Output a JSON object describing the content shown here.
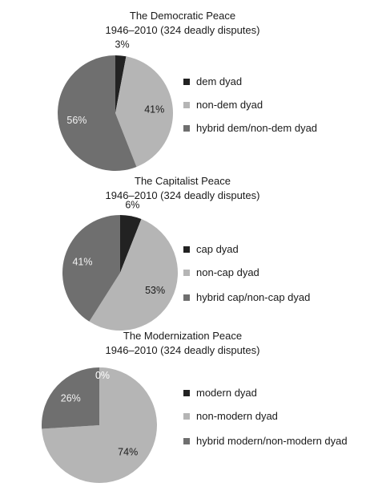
{
  "chart_data": [
    {
      "type": "pie",
      "title": "The Democratic Peace",
      "subtitle": "1946–2010 (324 deadly disputes)",
      "labels": [
        "dem dyad",
        "non-dem dyad",
        "hybrid dem/non-dem dyad"
      ],
      "values": [
        3,
        41,
        56
      ],
      "value_labels": [
        "3%",
        "41%",
        "56%"
      ],
      "colors": [
        "#222222",
        "#b5b5b5",
        "#6f6f6f"
      ],
      "legend_position": "right"
    },
    {
      "type": "pie",
      "title": "The Capitalist Peace",
      "subtitle": "1946–2010 (324 deadly disputes)",
      "labels": [
        "cap dyad",
        "non-cap dyad",
        "hybrid cap/non-cap dyad"
      ],
      "values": [
        6,
        53,
        41
      ],
      "value_labels": [
        "6%",
        "53%",
        "41%"
      ],
      "colors": [
        "#222222",
        "#b5b5b5",
        "#6f6f6f"
      ],
      "legend_position": "right"
    },
    {
      "type": "pie",
      "title": "The Modernization Peace",
      "subtitle": "1946–2010 (324 deadly disputes)",
      "labels": [
        "modern dyad",
        "non-modern dyad",
        "hybrid modern/non-modern dyad"
      ],
      "values": [
        0,
        74,
        26
      ],
      "value_labels": [
        "0%",
        "74%",
        "26%"
      ],
      "colors": [
        "#222222",
        "#b5b5b5",
        "#6f6f6f"
      ],
      "legend_position": "right"
    }
  ]
}
